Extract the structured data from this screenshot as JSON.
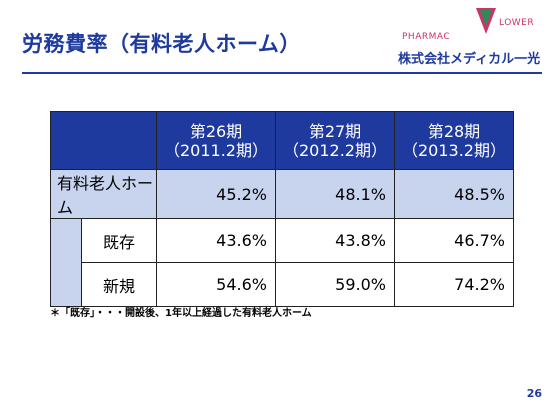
{
  "title": "労務費率（有料老人ホーム）",
  "logo": {
    "brand_left": "PHARMAC",
    "brand_right": "LOWER",
    "company": "株式会社メディカル一光"
  },
  "table": {
    "columns": [
      {
        "period": "第26期",
        "date": "（2011.2期）"
      },
      {
        "period": "第27期",
        "date": "（2012.2期）"
      },
      {
        "period": "第28期",
        "date": "（2013.2期）"
      }
    ],
    "total": {
      "label": "有料老人ホーム",
      "values": [
        "45.2%",
        "48.1%",
        "48.5%"
      ]
    },
    "rows": [
      {
        "label": "既存",
        "values": [
          "43.6%",
          "43.8%",
          "46.7%"
        ]
      },
      {
        "label": "新規",
        "values": [
          "54.6%",
          "59.0%",
          "74.2%"
        ]
      }
    ]
  },
  "footnote": "＊「既存」・・・開設後、1年以上経過した有料老人ホーム",
  "page_number": "26",
  "colors": {
    "accent": "#1f3a9e",
    "light_band": "#c8d4ee",
    "logo_pink": "#cc3366"
  }
}
